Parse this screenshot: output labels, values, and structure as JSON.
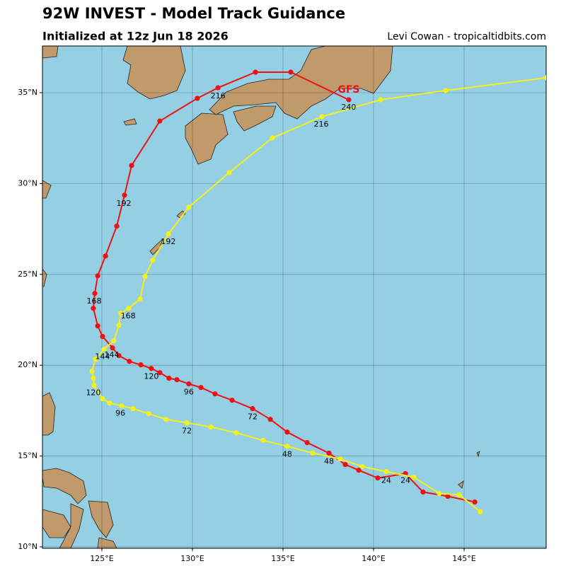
{
  "chart_data": {
    "type": "line",
    "title": "92W INVEST - Model Track Guidance",
    "subtitle": "Initialized at 12z Jun 18 2026",
    "credit": "Levi Cowan - tropicaltidbits.com",
    "xlim": [
      121.72,
      149.53
    ],
    "ylim": [
      9.92,
      37.57
    ],
    "xticks": [
      {
        "value": 125,
        "label": "125°E"
      },
      {
        "value": 130,
        "label": "130°E"
      },
      {
        "value": 135,
        "label": "135°E"
      },
      {
        "value": 140,
        "label": "140°E"
      },
      {
        "value": 145,
        "label": "145°E"
      }
    ],
    "yticks": [
      {
        "value": 10,
        "label": "10°N"
      },
      {
        "value": 15,
        "label": "15°N"
      },
      {
        "value": 20,
        "label": "20°N"
      },
      {
        "value": 25,
        "label": "25°N"
      },
      {
        "value": 30,
        "label": "30°N"
      },
      {
        "value": 35,
        "label": "35°N"
      }
    ],
    "grid": true,
    "series": [
      {
        "name": "GFS",
        "color": "#ee1111",
        "name_position": {
          "lon": 138.63,
          "lat": 35.16
        },
        "x": [
          145.59,
          144.1,
          142.73,
          141.76,
          140.23,
          139.18,
          138.44,
          137.54,
          136.33,
          135.23,
          134.3,
          133.32,
          132.19,
          131.25,
          130.47,
          129.8,
          129.14,
          128.71,
          128.2,
          127.73,
          127.15,
          126.52,
          125.94,
          125.59,
          125.04,
          124.77,
          124.53,
          124.61,
          124.77,
          125.2,
          125.82,
          126.25,
          126.64,
          128.2,
          130.27,
          131.41,
          133.48,
          135.43,
          138.63
        ],
        "values": [
          12.47,
          12.78,
          13.02,
          14.03,
          13.79,
          14.22,
          14.53,
          15.16,
          15.74,
          16.32,
          17.02,
          17.61,
          18.07,
          18.42,
          18.77,
          18.97,
          19.2,
          19.28,
          19.59,
          19.82,
          20.02,
          20.21,
          20.53,
          20.95,
          21.58,
          22.16,
          23.13,
          23.95,
          24.92,
          26.01,
          27.65,
          29.36,
          30.99,
          33.44,
          34.69,
          35.27,
          36.13,
          36.13,
          34.61
        ],
        "annotations": [
          {
            "text": "24",
            "lon": 141.76,
            "lat": 13.64
          },
          {
            "text": "48",
            "lon": 137.54,
            "lat": 14.69
          },
          {
            "text": "72",
            "lon": 133.32,
            "lat": 17.14
          },
          {
            "text": "96",
            "lon": 129.8,
            "lat": 18.5
          },
          {
            "text": "120",
            "lon": 127.73,
            "lat": 19.36
          },
          {
            "text": "144",
            "lon": 125.55,
            "lat": 20.56
          },
          {
            "text": "168",
            "lon": 124.57,
            "lat": 23.52
          },
          {
            "text": "192",
            "lon": 126.21,
            "lat": 28.89
          },
          {
            "text": "216",
            "lon": 131.41,
            "lat": 34.81
          },
          {
            "text": "240",
            "lon": 138.63,
            "lat": 34.18
          }
        ]
      },
      {
        "color": "#f5f01a",
        "x": [
          145.9,
          144.73,
          143.63,
          142.23,
          140.7,
          139.38,
          138.16,
          136.64,
          135.23,
          133.91,
          132.42,
          131.02,
          129.69,
          128.55,
          127.58,
          126.72,
          126.09,
          125.43,
          125.04,
          124.57,
          124.53,
          124.45,
          124.65,
          125.12,
          125.66,
          125.94,
          126.05,
          126.48,
          127.11,
          127.38,
          127.81,
          128.67,
          129.8,
          132.03,
          134.41,
          137.15,
          140.39,
          143.98,
          149.53
        ],
        "values": [
          11.93,
          12.86,
          12.94,
          13.83,
          14.14,
          14.42,
          14.84,
          15.16,
          15.54,
          15.86,
          16.28,
          16.6,
          16.83,
          17.02,
          17.33,
          17.61,
          17.76,
          17.92,
          18.15,
          18.89,
          19.28,
          19.67,
          20.33,
          20.88,
          21.34,
          22.2,
          22.86,
          23.13,
          23.64,
          24.88,
          25.78,
          27.22,
          28.7,
          30.6,
          32.51,
          33.68,
          34.61,
          35.12,
          35.82
        ],
        "annotations": [
          {
            "text": "24",
            "lon": 140.7,
            "lat": 13.64
          },
          {
            "text": "48",
            "lon": 135.23,
            "lat": 15.08
          },
          {
            "text": "72",
            "lon": 129.69,
            "lat": 16.36
          },
          {
            "text": "96",
            "lon": 126.02,
            "lat": 17.33
          },
          {
            "text": "120",
            "lon": 124.53,
            "lat": 18.46
          },
          {
            "text": "144",
            "lon": 125.04,
            "lat": 20.45
          },
          {
            "text": "168",
            "lon": 126.45,
            "lat": 22.7
          },
          {
            "text": "192",
            "lon": 128.67,
            "lat": 26.79
          },
          {
            "text": "216",
            "lon": 137.11,
            "lat": 33.25
          }
        ]
      }
    ]
  }
}
